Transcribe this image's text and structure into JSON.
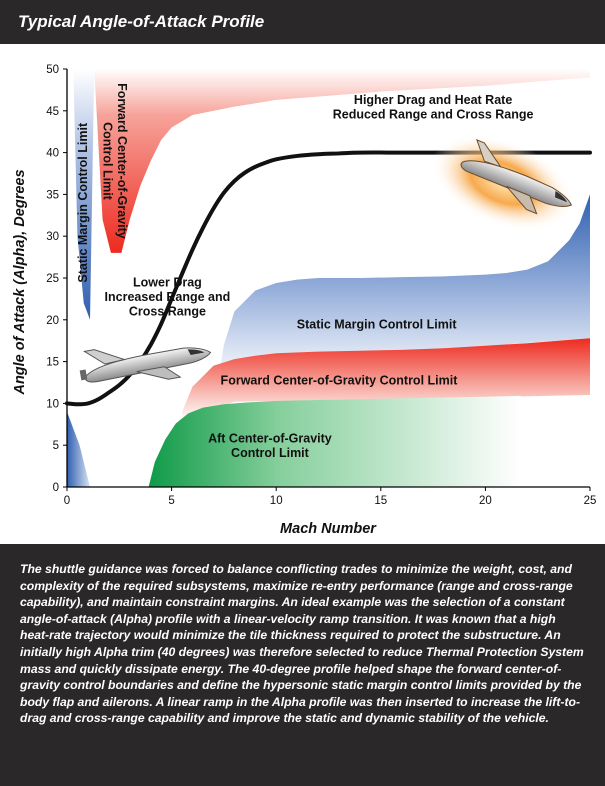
{
  "header": {
    "title": "Typical Angle-of-Attack Profile"
  },
  "caption": {
    "text": "The shuttle guidance was forced to balance conflicting trades to minimize the weight, cost, and complexity of the required subsystems, maximize re-entry performance (range and cross-range capability), and maintain constraint margins. An ideal example was the selection of a constant angle-of-attack (Alpha) profile with a linear-velocity ramp transition. It was known that a high heat-rate trajectory would minimize the tile thickness required to protect the substructure. An initially high Alpha trim (40 degrees) was therefore selected to reduce Thermal Protection System mass and quickly dissipate energy. The 40-degree profile helped shape the forward center-of-gravity control boundaries and define the hypersonic static margin control limits provided by the body flap and ailerons. A linear ramp in the Alpha profile was then inserted to increase the lift-to-drag and cross-range capability and improve the static and dynamic stability of the vehicle."
  },
  "colors": {
    "static_margin": "#2f5fb0",
    "forward_cg": "#ee2a1f",
    "aft_cg": "#1a9a4c",
    "profile_line": "#111111",
    "heat_glow": "#f39a2a"
  },
  "icons": {
    "shuttle_low": "space-shuttle-icon",
    "shuttle_high": "space-shuttle-heated-icon"
  },
  "chart_data": {
    "type": "area",
    "title": "Typical Angle-of-Attack Profile",
    "xlabel": "Mach Number",
    "ylabel": "Angle of Attack (Alpha), Degrees",
    "xlim": [
      0,
      25
    ],
    "ylim": [
      0,
      50
    ],
    "xticks": [
      "0",
      "5",
      "10",
      "15",
      "20",
      "25"
    ],
    "yticks": [
      "0",
      "5",
      "10",
      "15",
      "20",
      "25",
      "30",
      "35",
      "40",
      "45",
      "50"
    ],
    "grid": false,
    "series": [
      {
        "name": "Angle-of-Attack Profile",
        "kind": "line",
        "x": [
          0,
          0.5,
          1,
          1.5,
          2,
          2.5,
          3,
          3.5,
          4,
          4.5,
          5,
          5.5,
          6,
          6.5,
          7,
          7.5,
          8,
          8.5,
          9,
          9.5,
          10,
          11,
          12,
          13,
          14,
          16,
          18,
          20,
          22,
          25
        ],
        "y": [
          10,
          9.9,
          10,
          10.5,
          11.3,
          12.2,
          13.4,
          15,
          17,
          19.5,
          22.5,
          25.5,
          28.4,
          31,
          33.3,
          35.2,
          36.6,
          37.6,
          38.3,
          38.8,
          39.2,
          39.6,
          39.8,
          39.9,
          40,
          40,
          40,
          40,
          40,
          40
        ]
      },
      {
        "name": "Static Margin Control Limit",
        "kind": "band",
        "x": [
          7.2,
          7.5,
          8,
          9,
          10,
          11,
          12,
          13,
          14,
          16,
          18,
          20,
          21,
          22,
          23,
          24,
          24.5,
          25
        ],
        "y": [
          12.5,
          17,
          21,
          23.5,
          24.4,
          24.8,
          25,
          25,
          25,
          25.1,
          25.2,
          25.4,
          25.6,
          26,
          27,
          29.5,
          31.5,
          35
        ]
      },
      {
        "name": "Forward Center-of-Gravity Control Limit",
        "kind": "band",
        "x": [
          5.5,
          6,
          7,
          8,
          9,
          10,
          12,
          14,
          16,
          18,
          20,
          22,
          24,
          25
        ],
        "y": [
          9,
          12,
          14.5,
          15.3,
          15.7,
          16,
          16.2,
          16.3,
          16.4,
          16.6,
          16.9,
          17.2,
          17.6,
          17.8
        ]
      },
      {
        "name": "Aft Center-of-Gravity Control Limit",
        "kind": "band",
        "x": [
          3.9,
          4.2,
          4.7,
          5.2,
          5.8,
          6.5,
          7.5,
          8.5,
          10,
          12,
          14,
          16,
          18,
          20,
          21.7
        ],
        "y": [
          0,
          3,
          5.7,
          7.6,
          8.8,
          9.5,
          9.9,
          10.1,
          10.3,
          10.4,
          10.5,
          10.6,
          10.7,
          10.8,
          10.9
        ]
      },
      {
        "name": "Static Margin Control Limit",
        "kind": "region",
        "x": [
          0.3,
          0.5,
          0.8,
          1.1,
          1.3
        ],
        "y": [
          50,
          30,
          22,
          20,
          50
        ]
      },
      {
        "name": "Forward Center-of-Gravity Control Limit",
        "kind": "region",
        "x": [
          1.3,
          1.7,
          2.1,
          2.6,
          3,
          3.5,
          4,
          4.5,
          5,
          6,
          8,
          10,
          15,
          20,
          25
        ],
        "y": [
          50,
          32,
          28,
          28,
          32,
          36,
          39,
          41.5,
          43,
          44.5,
          45.5,
          46.3,
          47.3,
          48,
          49
        ]
      },
      {
        "name": "",
        "kind": "region",
        "x": [
          0,
          0.6,
          1.1
        ],
        "y": [
          9,
          5,
          0
        ]
      }
    ],
    "annotations": [
      {
        "text_lines": [
          "Static Margin Control Limit"
        ],
        "x": 0.75,
        "y": 34,
        "rotate": -90
      },
      {
        "text_lines": [
          "Forward Center-of-Gravity",
          "Control Limit"
        ],
        "x": 2.3,
        "y": 39,
        "rotate": 90
      },
      {
        "text_lines": [
          "Higher Drag and Heat Rate",
          "Reduced Range and Cross Range"
        ],
        "x": 17.5,
        "y": 45.5,
        "rotate": 0
      },
      {
        "text_lines": [
          "Lower Drag",
          "Increased Range and",
          "Cross Range"
        ],
        "x": 4.8,
        "y": 22.8,
        "rotate": 0
      },
      {
        "text_lines": [
          "Static Margin Control Limit"
        ],
        "x": 14.8,
        "y": 19.5,
        "rotate": 0
      },
      {
        "text_lines": [
          "Forward Center-of-Gravity Control Limit"
        ],
        "x": 13,
        "y": 12.8,
        "rotate": 0
      },
      {
        "text_lines": [
          "Aft Center-of-Gravity",
          "Control Limit"
        ],
        "x": 9.7,
        "y": 5,
        "rotate": 0
      }
    ]
  }
}
